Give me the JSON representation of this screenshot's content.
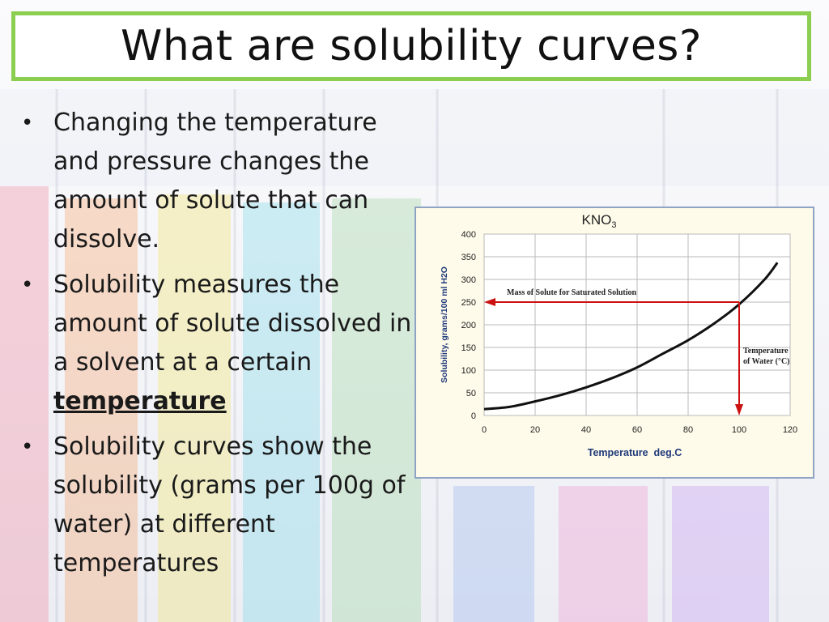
{
  "slide": {
    "title": "What are solubility curves?",
    "bullets": [
      {
        "text": "Changing the temperature and pressure changes the amount of solute that can dissolve.",
        "emphasis": ""
      },
      {
        "text": "Solubility measures the amount of solute dissolved in a solvent at a certain ",
        "emphasis": "temperature"
      },
      {
        "text": "Solubility curves show the solubility (grams per 100g of water) at different temperatures",
        "emphasis": ""
      }
    ]
  },
  "chart_data": {
    "type": "line",
    "title": "KNO",
    "title_subscript": "3",
    "xlabel": "Temperature  deg.C",
    "ylabel": "Solubility, grams/100 ml H2O",
    "xlim": [
      0,
      120
    ],
    "ylim": [
      0,
      400
    ],
    "x_ticks": [
      0,
      20,
      40,
      60,
      80,
      100,
      120
    ],
    "y_ticks": [
      0,
      50,
      100,
      150,
      200,
      250,
      300,
      350,
      400
    ],
    "grid": true,
    "series": [
      {
        "name": "",
        "color": "#111111",
        "x": [
          0,
          10,
          20,
          30,
          40,
          50,
          60,
          70,
          80,
          90,
          100,
          110,
          115
        ],
        "y": [
          14,
          19,
          31,
          45,
          62,
          82,
          106,
          136,
          166,
          202,
          245,
          300,
          337
        ]
      }
    ],
    "annotations": [
      {
        "type": "horizontal-arrow",
        "y": 250,
        "x_from": 100,
        "x_to": 0,
        "label": "Mass of Solute for Saturated Solution",
        "color": "#cc1111"
      },
      {
        "type": "vertical-arrow",
        "x": 100,
        "y_from": 250,
        "y_to": 0,
        "label_lines": [
          "Temperature",
          "of Water (°C)"
        ],
        "color": "#cc1111"
      }
    ]
  }
}
